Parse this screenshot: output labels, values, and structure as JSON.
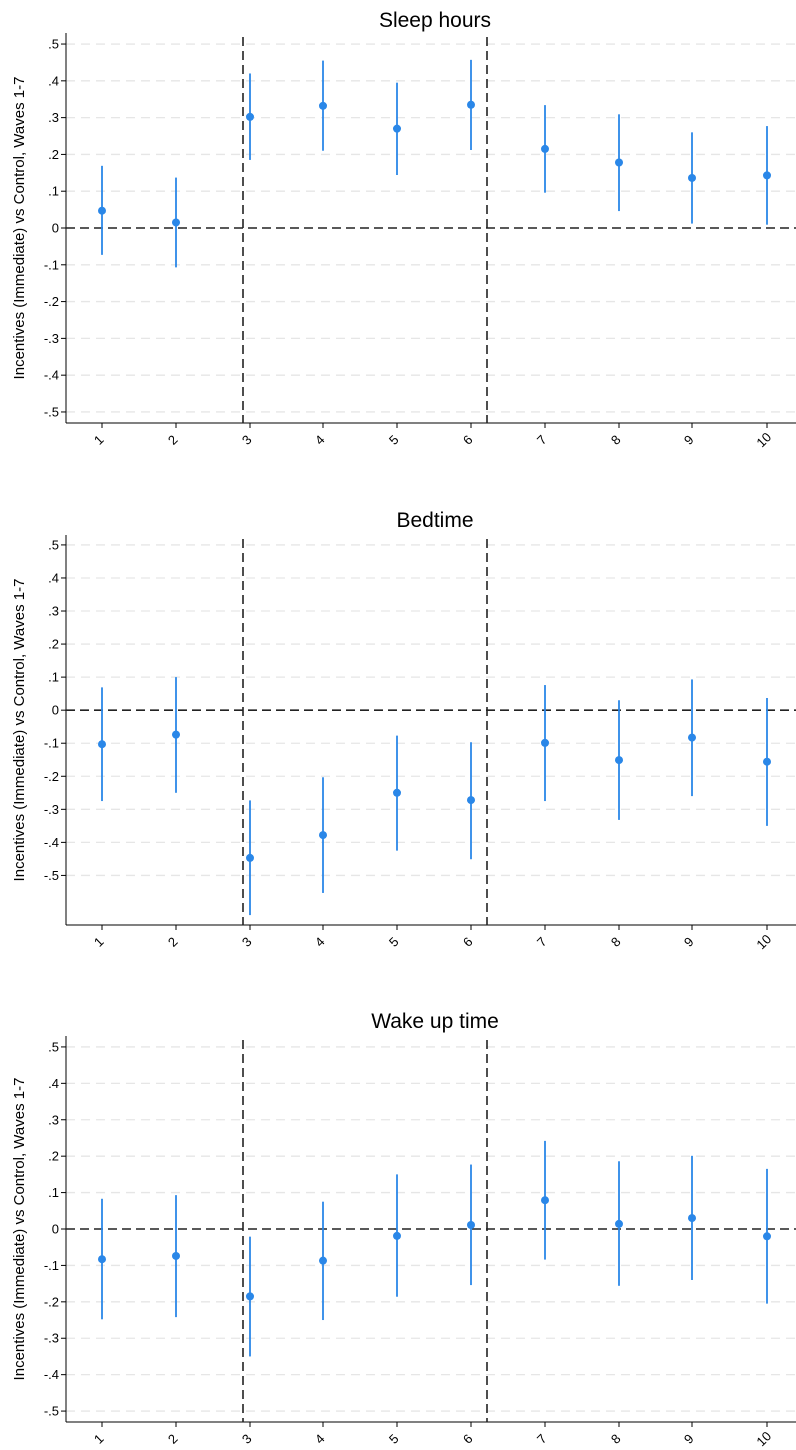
{
  "chart_data": [
    {
      "type": "scatter",
      "title": "Sleep hours",
      "ylabel": "Incentives (Immediate) vs Control, Waves 1-7",
      "xlabel": "",
      "categories": [
        "1",
        "2",
        "3",
        "4",
        "5",
        "6",
        "7",
        "8",
        "9",
        "10"
      ],
      "ytick_labels": [
        ".5",
        ".4",
        ".3",
        ".2",
        ".1",
        "0",
        "-.1",
        "-.2",
        "-.3",
        "-.4",
        "-.5"
      ],
      "yticks": [
        0.5,
        0.4,
        0.3,
        0.2,
        0.1,
        0,
        -0.1,
        -0.2,
        -0.3,
        -0.4,
        -0.5
      ],
      "ylim": [
        -0.53,
        0.53
      ],
      "estimates": [
        0.047,
        0.015,
        0.302,
        0.332,
        0.27,
        0.335,
        0.215,
        0.178,
        0.136,
        0.143
      ],
      "ci_low": [
        -0.073,
        -0.107,
        0.185,
        0.21,
        0.144,
        0.212,
        0.096,
        0.046,
        0.012,
        0.009
      ],
      "ci_high": [
        0.169,
        0.137,
        0.42,
        0.455,
        0.395,
        0.457,
        0.334,
        0.309,
        0.26,
        0.277
      ],
      "reference_lines": {
        "horizontal_y": 0,
        "vertical_between": [
          [
            2,
            3
          ],
          [
            6,
            7
          ]
        ]
      },
      "grid": "horizontal dashed"
    },
    {
      "type": "scatter",
      "title": "Bedtime",
      "ylabel": "Incentives (Immediate) vs Control, Waves 1-7",
      "xlabel": "",
      "categories": [
        "1",
        "2",
        "3",
        "4",
        "5",
        "6",
        "7",
        "8",
        "9",
        "10"
      ],
      "ytick_labels": [
        ".5",
        ".4",
        ".3",
        ".2",
        ".1",
        "0",
        "-.1",
        "-.2",
        "-.3",
        "-.4",
        "-.5"
      ],
      "yticks": [
        0.5,
        0.4,
        0.3,
        0.2,
        0.1,
        0,
        -0.1,
        -0.2,
        -0.3,
        -0.4,
        -0.5
      ],
      "ylim": [
        -0.65,
        0.53
      ],
      "estimates": [
        -0.103,
        -0.074,
        -0.447,
        -0.378,
        -0.25,
        -0.272,
        -0.099,
        -0.151,
        -0.083,
        -0.156
      ],
      "ci_low": [
        -0.275,
        -0.25,
        -0.62,
        -0.553,
        -0.425,
        -0.451,
        -0.275,
        -0.332,
        -0.26,
        -0.35
      ],
      "ci_high": [
        0.069,
        0.1,
        -0.273,
        -0.203,
        -0.077,
        -0.097,
        0.076,
        0.03,
        0.093,
        0.037
      ],
      "reference_lines": {
        "horizontal_y": 0,
        "vertical_between": [
          [
            2,
            3
          ],
          [
            6,
            7
          ]
        ]
      },
      "grid": "horizontal dashed"
    },
    {
      "type": "scatter",
      "title": "Wake up time",
      "ylabel": "Incentives (Immediate) vs Control, Waves 1-7",
      "xlabel": "",
      "categories": [
        "1",
        "2",
        "3",
        "4",
        "5",
        "6",
        "7",
        "8",
        "9",
        "10"
      ],
      "ytick_labels": [
        ".5",
        ".4",
        ".3",
        ".2",
        ".1",
        "0",
        "-.1",
        "-.2",
        "-.3",
        "-.4",
        "-.5"
      ],
      "yticks": [
        0.5,
        0.4,
        0.3,
        0.2,
        0.1,
        0,
        -0.1,
        -0.2,
        -0.3,
        -0.4,
        -0.5
      ],
      "ylim": [
        -0.53,
        0.53
      ],
      "estimates": [
        -0.083,
        -0.074,
        -0.185,
        -0.087,
        -0.019,
        0.011,
        0.079,
        0.014,
        0.03,
        -0.02
      ],
      "ci_low": [
        -0.248,
        -0.242,
        -0.35,
        -0.25,
        -0.186,
        -0.154,
        -0.084,
        -0.156,
        -0.14,
        -0.205
      ],
      "ci_high": [
        0.083,
        0.093,
        -0.021,
        0.075,
        0.15,
        0.177,
        0.242,
        0.186,
        0.201,
        0.165
      ],
      "reference_lines": {
        "horizontal_y": 0,
        "vertical_between": [
          [
            2,
            3
          ],
          [
            6,
            7
          ]
        ]
      },
      "grid": "horizontal dashed"
    }
  ],
  "colors": {
    "marker": "#2a87e8",
    "ci_line": "#2a87e8",
    "grid": "#e6e6e6",
    "reference": "#222222"
  }
}
